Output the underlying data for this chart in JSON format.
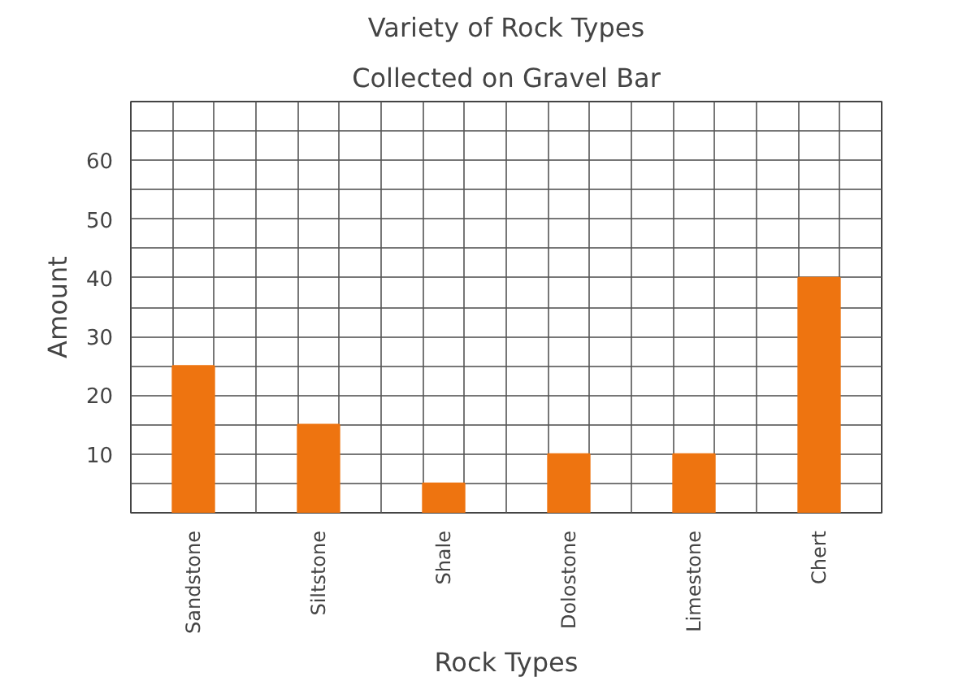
{
  "chart_data": {
    "type": "bar",
    "title": "Variety of Rock Types",
    "subtitle": "Collected on Gravel Bar",
    "xlabel": "Rock Types",
    "ylabel": "Amount",
    "categories": [
      "Sandstone",
      "Siltstone",
      "Shale",
      "Dolostone",
      "Limestone",
      "Chert"
    ],
    "values": [
      25,
      15,
      5,
      10,
      10,
      40
    ],
    "color": "#ee7410",
    "ylim": [
      0,
      70
    ],
    "yticks": [
      {
        "value": 5,
        "label": null
      },
      10,
      {
        "value": 15,
        "label": null
      },
      20,
      {
        "value": 25,
        "label": null
      },
      30,
      {
        "value": 35,
        "label": null
      },
      40,
      {
        "value": 45,
        "label": null
      },
      50,
      {
        "value": 55,
        "label": null
      },
      60,
      {
        "value": 65,
        "label": null
      }
    ],
    "grid": true
  }
}
